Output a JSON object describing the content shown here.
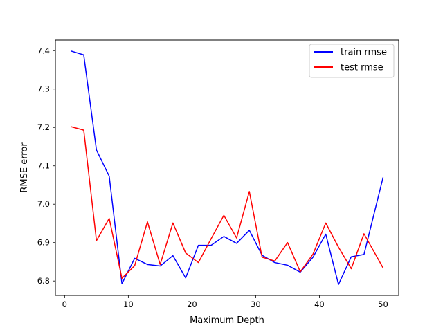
{
  "chart_data": {
    "type": "line",
    "title": "",
    "xlabel": "Maximum Depth",
    "ylabel": "RMSE error",
    "xlim": [
      -1.45,
      52.45
    ],
    "ylim": [
      6.7625,
      7.4275
    ],
    "xticks": [
      0,
      10,
      20,
      30,
      40,
      50
    ],
    "xtick_labels": [
      "0",
      "10",
      "20",
      "30",
      "40",
      "50"
    ],
    "yticks": [
      6.8,
      6.9,
      7.0,
      7.1,
      7.2,
      7.3,
      7.4
    ],
    "ytick_labels": [
      "6.8",
      "6.9",
      "7.0",
      "7.1",
      "7.2",
      "7.3",
      "7.4"
    ],
    "grid": false,
    "legend_position": "top-right",
    "x": [
      1,
      3,
      5,
      7,
      9,
      11,
      13,
      15,
      17,
      19,
      21,
      23,
      25,
      27,
      29,
      31,
      33,
      35,
      37,
      39,
      41,
      43,
      45,
      47,
      50
    ],
    "series": [
      {
        "name": "train rmse",
        "color": "#0000ff",
        "values": [
          7.399,
          7.389,
          7.141,
          7.073,
          6.793,
          6.859,
          6.843,
          6.839,
          6.866,
          6.808,
          6.893,
          6.893,
          6.916,
          6.898,
          6.932,
          6.867,
          6.848,
          6.841,
          6.823,
          6.862,
          6.922,
          6.791,
          6.863,
          6.869,
          7.07
        ]
      },
      {
        "name": "test rmse",
        "color": "#ff0000",
        "values": [
          7.202,
          7.193,
          6.905,
          6.963,
          6.807,
          6.84,
          6.954,
          6.843,
          6.951,
          6.873,
          6.848,
          6.91,
          6.971,
          6.912,
          7.033,
          6.862,
          6.852,
          6.9,
          6.824,
          6.87,
          6.951,
          6.888,
          6.832,
          6.923,
          6.834
        ]
      }
    ]
  }
}
